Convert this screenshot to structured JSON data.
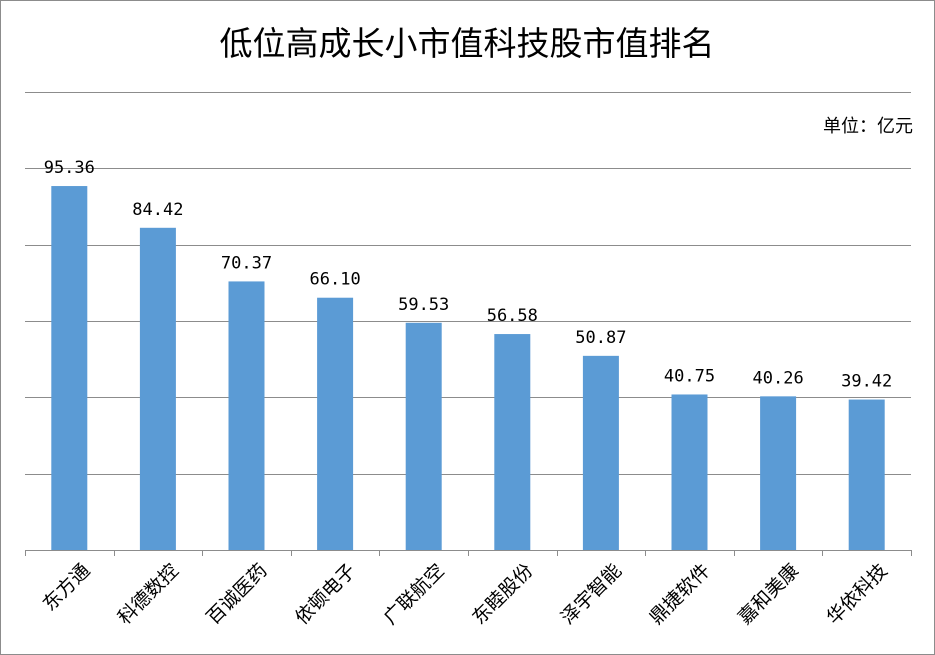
{
  "chart_data": {
    "type": "bar",
    "title": "低位高成长小市值科技股市值排名",
    "unit_label": "单位：亿元",
    "categories": [
      "东方通",
      "科德数控",
      "百诚医药",
      "依顿电子",
      "广联航空",
      "东睦股份",
      "泽宇智能",
      "鼎捷软件",
      "嘉和美康",
      "华依科技"
    ],
    "values": [
      95.36,
      84.42,
      70.37,
      66.1,
      59.53,
      56.58,
      50.87,
      40.75,
      40.26,
      39.42
    ],
    "value_labels": [
      "95.36",
      "84.42",
      "70.37",
      "66.10",
      "59.53",
      "56.58",
      "50.87",
      "40.75",
      "40.26",
      "39.42"
    ],
    "ylim": [
      0,
      120
    ],
    "y_gridlines": [
      0,
      20,
      40,
      60,
      80,
      100,
      120
    ],
    "grid": true,
    "legend": "none",
    "bar_color": "#5b9bd5",
    "xlabel": "",
    "ylabel": ""
  }
}
